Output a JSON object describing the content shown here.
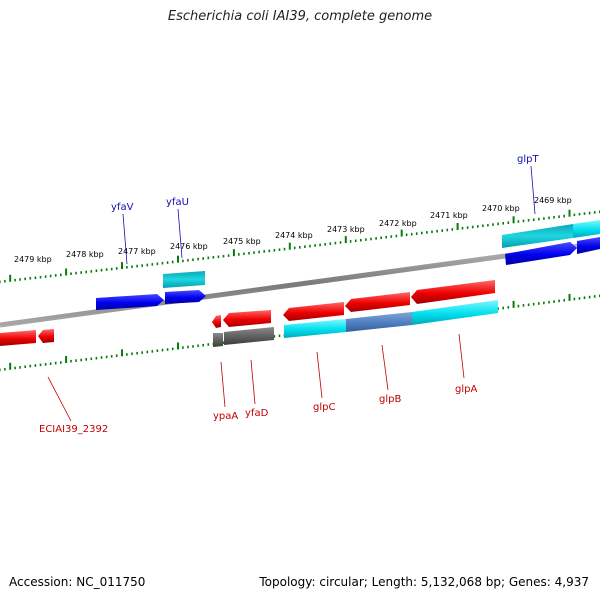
{
  "title": "Escherichia coli IAI39, complete genome",
  "footer": {
    "accession": "Accession: NC_011750",
    "info": "Topology: circular; Length: 5,132,068 bp; Genes: 4,937"
  },
  "colors": {
    "backbone": "#7d7d7d",
    "tick": "#0a7a0a",
    "forward_gene": "#0000ee",
    "reverse_gene": "#ee0000",
    "forward_label": "#1010b0",
    "reverse_label": "#c00000",
    "cyan": "#00e0ee",
    "grey": "#666666"
  },
  "ticks": [
    {
      "label": "2479 kbp"
    },
    {
      "label": "2478 kbp"
    },
    {
      "label": "2477 kbp"
    },
    {
      "label": "2476 kbp"
    },
    {
      "label": "2475 kbp"
    },
    {
      "label": "2474 kbp"
    },
    {
      "label": "2473 kbp"
    },
    {
      "label": "2472 kbp"
    },
    {
      "label": "2471 kbp"
    },
    {
      "label": "2470 kbp"
    },
    {
      "label": "2469 kbp"
    }
  ],
  "forward_genes": [
    {
      "name": "yfaV",
      "icon": "arrow-right"
    },
    {
      "name": "yfaU",
      "icon": "arrow-right"
    },
    {
      "name": "glpT",
      "icon": "arrow-right"
    }
  ],
  "reverse_genes": [
    {
      "name": "ECIAI39_2392",
      "icon": "arrow-left"
    },
    {
      "name": "ypaA",
      "icon": "arrow-left"
    },
    {
      "name": "yfaD",
      "icon": "arrow-left"
    },
    {
      "name": "glpC",
      "icon": "arrow-left"
    },
    {
      "name": "glpB",
      "icon": "arrow-left"
    },
    {
      "name": "glpA",
      "icon": "arrow-left"
    }
  ]
}
